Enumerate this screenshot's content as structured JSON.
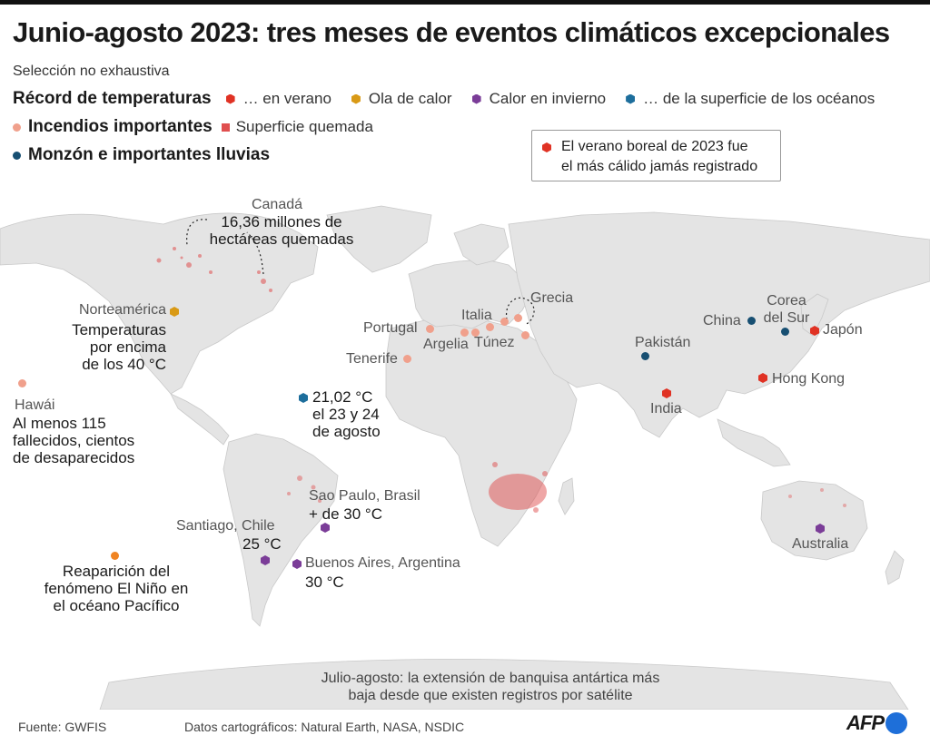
{
  "title": "Junio-agosto 2023: tres meses de eventos climáticos excepcionales",
  "subtitle": "Selección no exhaustiva",
  "colors": {
    "summer_record": "#e03224",
    "heatwave": "#d99a16",
    "winter_heat": "#7b3d98",
    "ocean_surface": "#1d6e9c",
    "fire": "#f0a08c",
    "burned_area": "#e04f4f",
    "monsoon": "#174f72",
    "el_nino": "#f08422"
  },
  "legend": {
    "temp_head": "Récord de temperaturas",
    "temp_items": [
      "… en verano",
      "Ola de calor",
      "Calor en invierno",
      "… de la superficie de los océanos"
    ],
    "fire_head": "Incendios importantes",
    "fire_items": [
      "Superficie quemada"
    ],
    "monsoon_head": "Monzón e importantes lluvias"
  },
  "note": {
    "line1": "El verano boreal de 2023 fue",
    "line2": "el más cálido jamás registrado"
  },
  "map": {
    "canada_name": "Canadá",
    "canada_l1": "16,36 millones de",
    "canada_l2": "hectáreas quemadas",
    "na_name": "Norteamérica",
    "na_l1": "Temperaturas",
    "na_l2": "por encima",
    "na_l3": "de los 40 °C",
    "hawaii_name": "Hawái",
    "hawaii_l1": "Al menos 115",
    "hawaii_l2": "fallecidos, cientos",
    "hawaii_l3": "de desaparecidos",
    "ocean_l1": "21,02 °C",
    "ocean_l2": "el 23 y 24",
    "ocean_l3": "de agosto",
    "portugal": "Portugal",
    "tenerife": "Tenerife",
    "italia": "Italia",
    "grecia": "Grecia",
    "argelia": "Argelia",
    "tunez": "Túnez",
    "pakistan": "Pakistán",
    "india": "India",
    "china": "China",
    "corea_l1": "Corea",
    "corea_l2": "del Sur",
    "japon": "Japón",
    "hongkong": "Hong Kong",
    "saopaulo_name": "Sao Paulo, Brasil",
    "saopaulo_val": "+ de 30 °C",
    "santiago_name": "Santiago, Chile",
    "santiago_val": "25 °C",
    "buenosaires_name": "Buenos Aires, Argentina",
    "buenosaires_val": "30 °C",
    "australia": "Australia",
    "nino_l1": "Reaparición del",
    "nino_l2": "fenómeno El Niño en",
    "nino_l3": "el océano Pacífico",
    "antarctic_l1": "Julio-agosto: la extensión de banquisa antártica más",
    "antarctic_l2": "baja desde que existen registros por satélite"
  },
  "footer": {
    "source": "Fuente: GWFIS",
    "carto": "Datos cartográficos: Natural Earth, NASA, NSDIC",
    "logo": "AFP"
  }
}
